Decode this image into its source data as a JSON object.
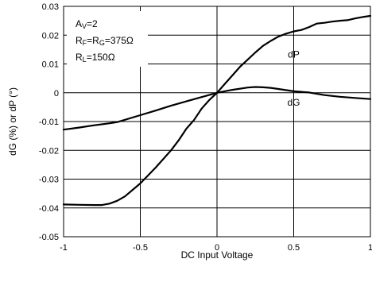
{
  "chart_data": {
    "type": "line",
    "title": "",
    "xlabel": "DC Input Voltage",
    "ylabel": "dG (%) or dP (°)",
    "xlim": [
      -1,
      1
    ],
    "ylim": [
      -0.05,
      0.03
    ],
    "x_ticks": [
      "-1",
      "-0.5",
      "0",
      "0.5",
      "1"
    ],
    "y_ticks": [
      "0.03",
      "0.02",
      "0.01",
      "0",
      "-0.01",
      "-0.02",
      "-0.03",
      "-0.04",
      "-0.05"
    ],
    "grid": true,
    "legend": "none",
    "annotation": {
      "line1_main": "A",
      "line1_sub": "V",
      "line1_rest": "=2",
      "line2_a": "R",
      "line2_a_sub": "F",
      "line2_b": "=R",
      "line2_b_sub": "G",
      "line2_rest": "=375Ω",
      "line3_main": "R",
      "line3_sub": "L",
      "line3_rest": "=150Ω"
    },
    "series": [
      {
        "name": "dP",
        "x": [
          -1.0,
          -0.9,
          -0.8,
          -0.75,
          -0.7,
          -0.65,
          -0.6,
          -0.5,
          -0.4,
          -0.3,
          -0.25,
          -0.2,
          -0.15,
          -0.1,
          -0.05,
          0.0,
          0.05,
          0.1,
          0.15,
          0.2,
          0.25,
          0.3,
          0.35,
          0.4,
          0.45,
          0.5,
          0.55,
          0.6,
          0.65,
          0.7,
          0.75,
          0.8,
          0.85,
          0.9,
          0.95,
          1.0
        ],
        "values": [
          -0.0388,
          -0.0389,
          -0.039,
          -0.039,
          -0.0385,
          -0.0375,
          -0.036,
          -0.0315,
          -0.026,
          -0.02,
          -0.0165,
          -0.0125,
          -0.0095,
          -0.0055,
          -0.0025,
          0.0,
          0.003,
          0.006,
          0.009,
          0.0115,
          0.014,
          0.0163,
          0.018,
          0.0195,
          0.0205,
          0.0213,
          0.0218,
          0.0228,
          0.024,
          0.0243,
          0.0247,
          0.025,
          0.0252,
          0.0258,
          0.0263,
          0.0267
        ],
        "color": "#000000"
      },
      {
        "name": "dG",
        "x": [
          -1.0,
          -0.9,
          -0.8,
          -0.7,
          -0.65,
          -0.5,
          -0.4,
          -0.3,
          -0.2,
          -0.1,
          0.0,
          0.1,
          0.2,
          0.25,
          0.3,
          0.35,
          0.4,
          0.5,
          0.6,
          0.7,
          0.8,
          0.9,
          1.0
        ],
        "values": [
          -0.0128,
          -0.0121,
          -0.0113,
          -0.0106,
          -0.0102,
          -0.0078,
          -0.0062,
          -0.0045,
          -0.003,
          -0.0015,
          0.0,
          0.001,
          0.0018,
          0.002,
          0.0019,
          0.0017,
          0.0013,
          0.0005,
          0.0001,
          -0.0008,
          -0.0014,
          -0.0018,
          -0.0022
        ],
        "color": "#000000"
      }
    ],
    "labels": [
      {
        "text": "dP",
        "x": 0.5,
        "y": 0.0122
      },
      {
        "text": "dG",
        "x": 0.5,
        "y": -0.0045
      }
    ]
  }
}
